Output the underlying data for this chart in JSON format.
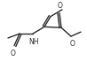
{
  "bg_color": "#ffffff",
  "line_color": "#2a2a2a",
  "line_width": 1.0,
  "figsize": [
    0.98,
    0.78
  ],
  "dpi": 100,
  "xlim": [
    0,
    98
  ],
  "ylim": [
    0,
    78
  ]
}
